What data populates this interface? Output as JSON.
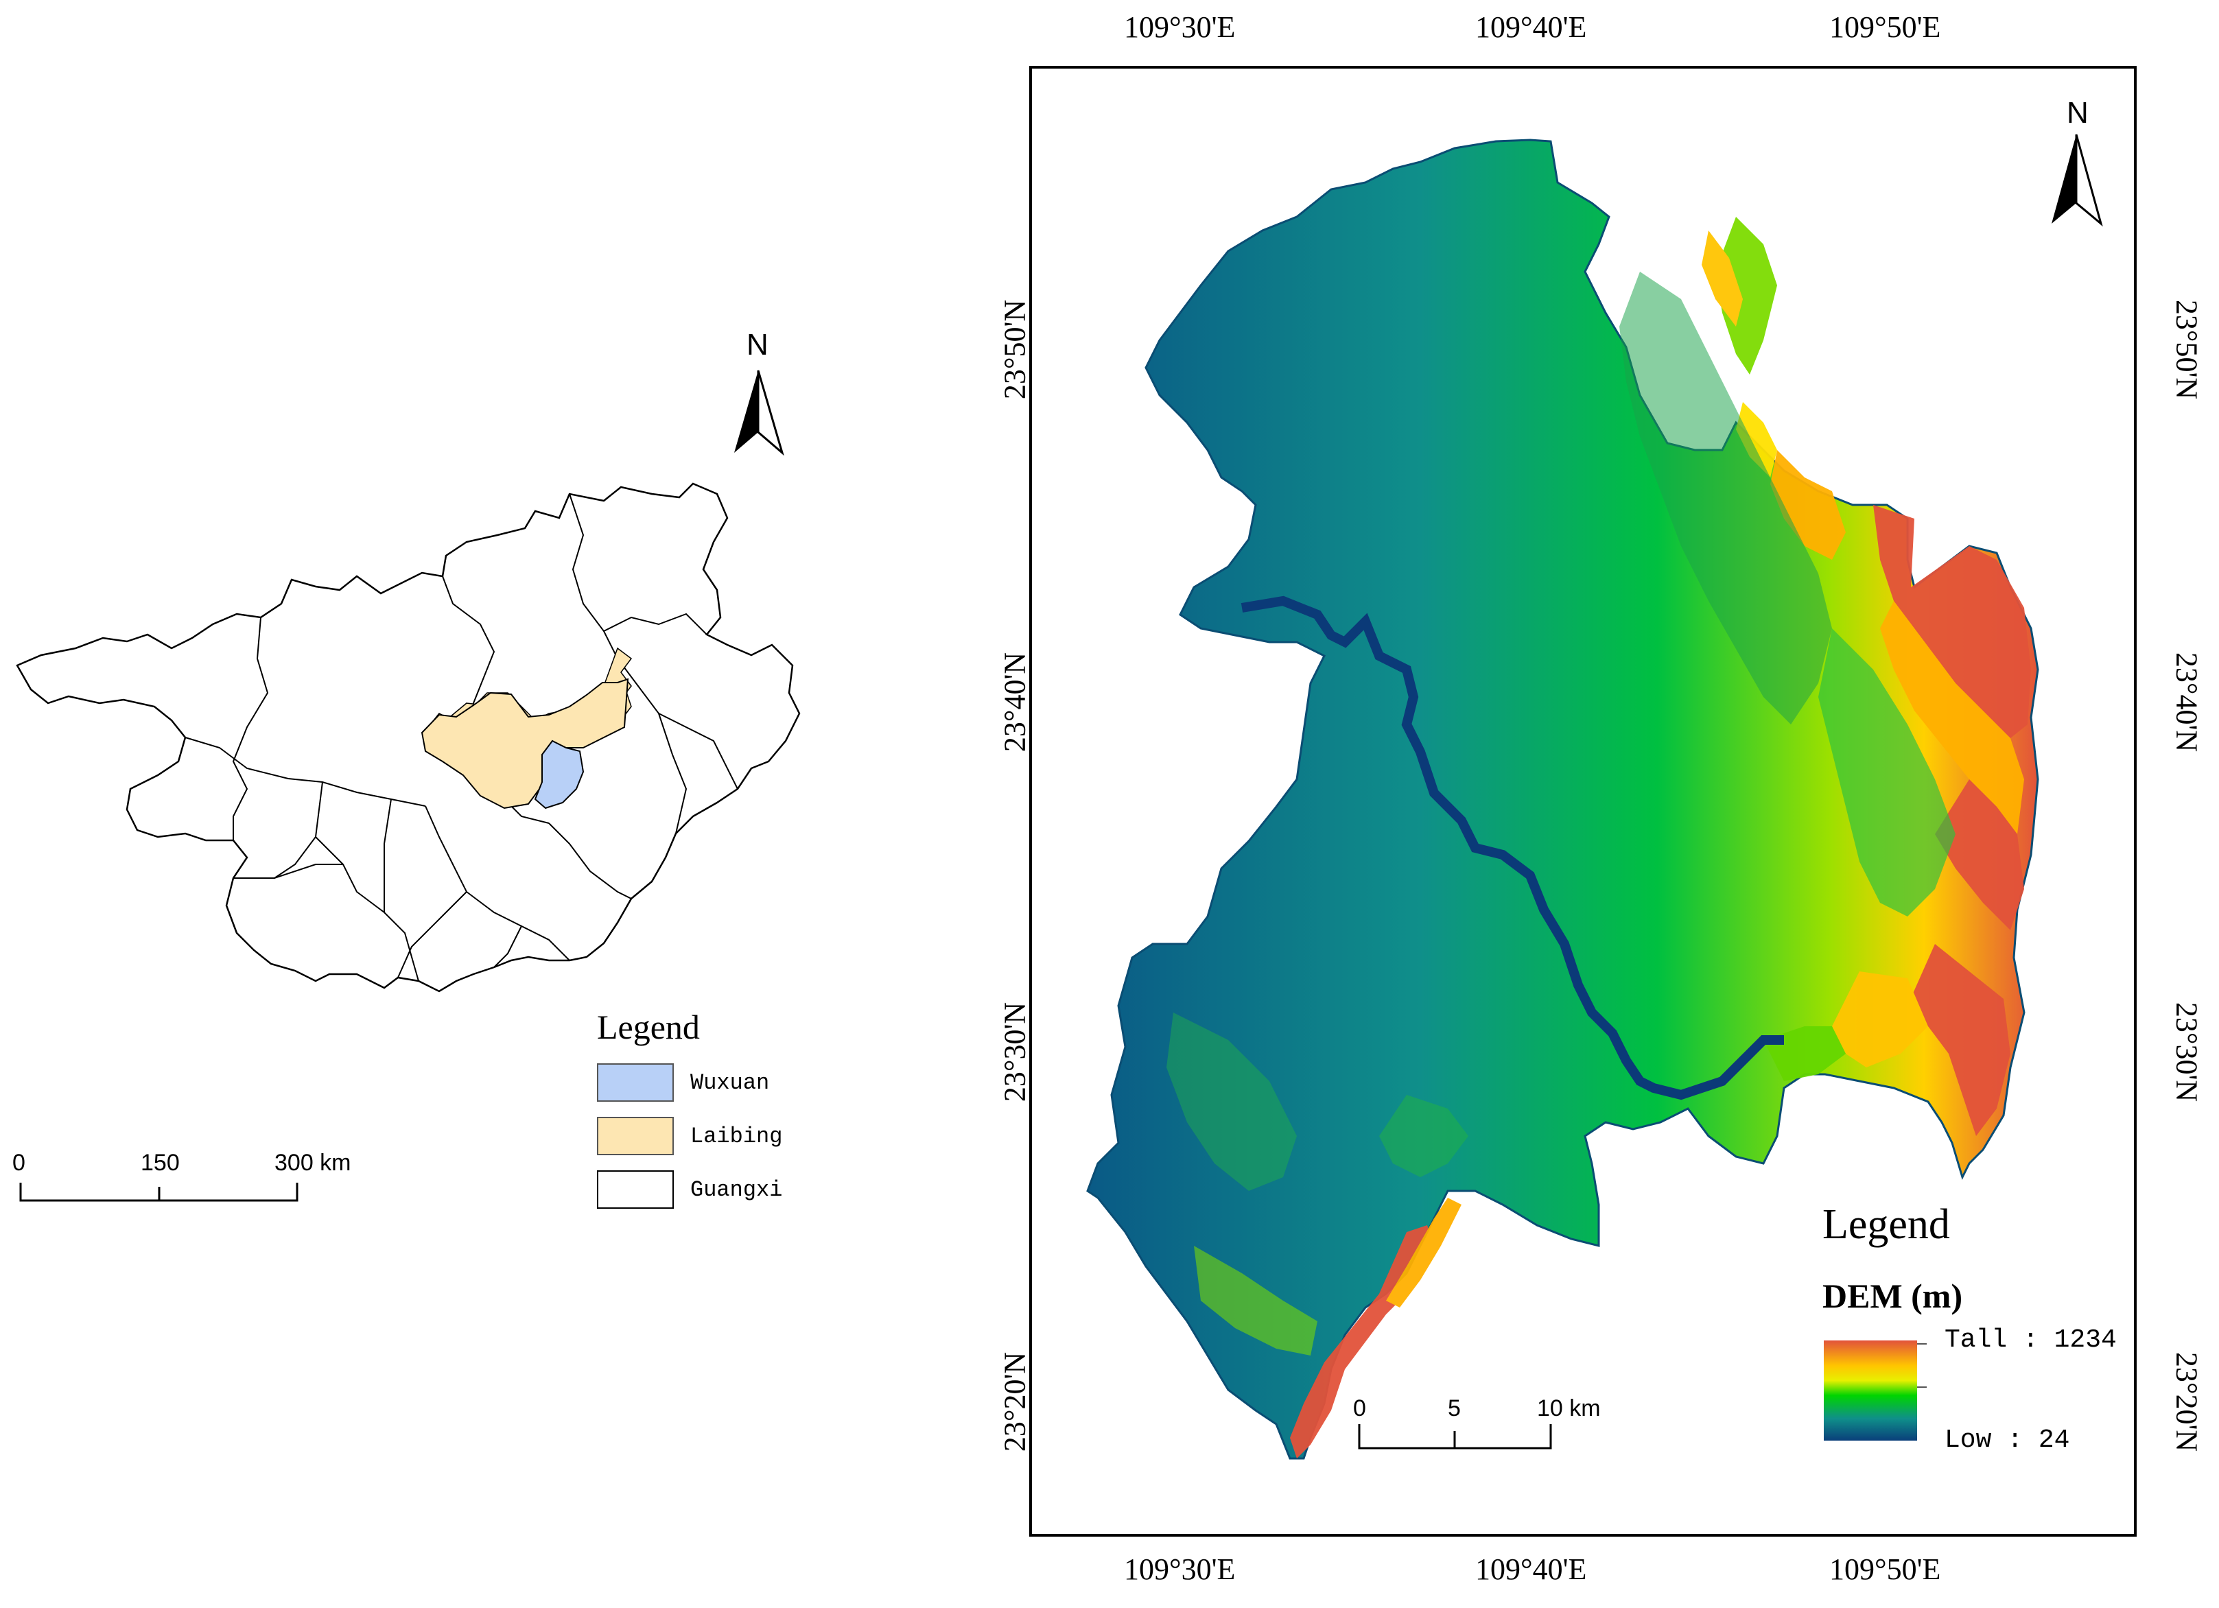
{
  "left_map": {
    "north_label": "N",
    "legend": {
      "title": "Legend",
      "items": [
        {
          "label": "Wuxuan",
          "color": "#b8d0f7"
        },
        {
          "label": "Laibing",
          "color": "#fde6b2"
        },
        {
          "label": "Guangxi",
          "color": "#ffffff"
        }
      ]
    },
    "scale_bar": {
      "labels": [
        "0",
        "150",
        "300 km"
      ]
    }
  },
  "right_map": {
    "north_label": "N",
    "top_labels": [
      "109°30'E",
      "109°40'E",
      "109°50'E"
    ],
    "bottom_labels": [
      "109°30'E",
      "109°40'E",
      "109°50'E"
    ],
    "left_labels": [
      "23°50'N",
      "23°40'N",
      "23°30'N",
      "23°20'N"
    ],
    "right_labels": [
      "23°50'N",
      "23°40'N",
      "23°30'N",
      "23°20'N"
    ],
    "legend": {
      "title": "Legend",
      "subtitle": "DEM (m)",
      "high_label": "Tall : 1234",
      "low_label": "Low : 24",
      "gradient_colors": [
        "#e2533a",
        "#ffe100",
        "#00d400",
        "#0f8f8a",
        "#0a3f7a"
      ]
    },
    "scale_bar": {
      "labels": [
        "0",
        "5",
        "10 km"
      ]
    }
  }
}
